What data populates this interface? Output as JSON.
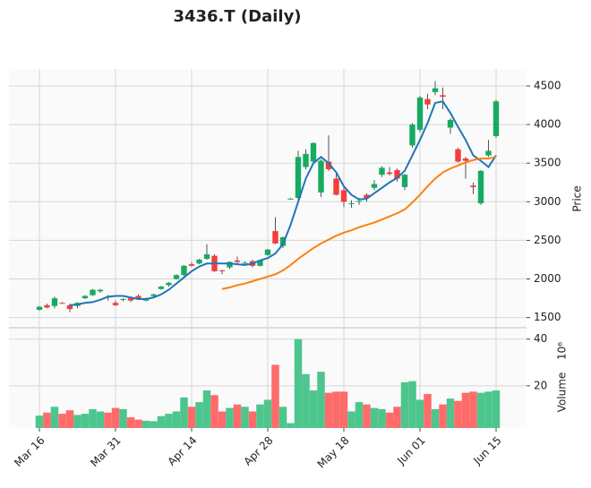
{
  "chart_data": {
    "type": "candlestick",
    "title": "3436.T (Daily)",
    "ylabel": "Price",
    "y2label": "Volume",
    "y2_offset_label": "10⁶",
    "categories": [
      "Mar 16",
      null,
      null,
      null,
      null,
      null,
      null,
      null,
      null,
      null,
      "Mar 31",
      null,
      null,
      null,
      null,
      null,
      null,
      null,
      null,
      null,
      "Apr 14",
      null,
      null,
      null,
      null,
      null,
      null,
      null,
      null,
      null,
      "Apr 28",
      null,
      null,
      null,
      null,
      null,
      null,
      null,
      null,
      null,
      "May 18",
      null,
      null,
      null,
      null,
      null,
      null,
      null,
      null,
      null,
      "Jun 01",
      null,
      null,
      null,
      null,
      null,
      null,
      null,
      null,
      null,
      "Jun 15"
    ],
    "open": [
      1600,
      1660,
      1650,
      1690,
      1660,
      1650,
      1750,
      1790,
      1840,
      1770,
      1690,
      1730,
      1750,
      1780,
      1720,
      1780,
      1870,
      1920,
      2000,
      2050,
      2190,
      2200,
      2260,
      2300,
      2110,
      2150,
      2240,
      2200,
      2230,
      2170,
      2310,
      2620,
      2430,
      3040,
      3050,
      3450,
      3520,
      3120,
      3520,
      3300,
      3150,
      2970,
      3000,
      3090,
      3180,
      3350,
      3380,
      3410,
      3190,
      3730,
      3930,
      4330,
      4420,
      4380,
      3960,
      3680,
      3560,
      3210,
      2980,
      3600,
      3850
    ],
    "high": [
      1650,
      1680,
      1770,
      1700,
      1680,
      1700,
      1790,
      1870,
      1870,
      1790,
      1720,
      1750,
      1770,
      1800,
      1760,
      1810,
      1910,
      1960,
      2060,
      2180,
      2220,
      2260,
      2450,
      2320,
      2120,
      2230,
      2290,
      2230,
      2250,
      2250,
      2390,
      2800,
      2550,
      3050,
      3660,
      3680,
      3770,
      3550,
      3860,
      3360,
      3200,
      3020,
      3050,
      3110,
      3280,
      3460,
      3450,
      3430,
      3360,
      4020,
      4370,
      4400,
      4560,
      4480,
      4080,
      3700,
      3580,
      3250,
      3410,
      3800,
      4320
    ],
    "low": [
      1590,
      1620,
      1620,
      1680,
      1570,
      1620,
      1740,
      1780,
      1820,
      1720,
      1650,
      1710,
      1700,
      1740,
      1710,
      1770,
      1860,
      1900,
      1990,
      2040,
      2160,
      2190,
      2250,
      2090,
      2060,
      2130,
      2200,
      2180,
      2150,
      2160,
      2300,
      2450,
      2400,
      3030,
      2990,
      3420,
      3500,
      3060,
      3400,
      3080,
      2930,
      2920,
      2960,
      3000,
      3150,
      3320,
      3340,
      3260,
      3150,
      3700,
      3900,
      4200,
      4380,
      4200,
      3880,
      3510,
      3300,
      3100,
      2960,
      3580,
      3830
    ],
    "close": [
      1640,
      1630,
      1750,
      1685,
      1610,
      1690,
      1780,
      1860,
      1860,
      1760,
      1660,
      1740,
      1720,
      1750,
      1740,
      1800,
      1900,
      1950,
      2050,
      2170,
      2170,
      2250,
      2320,
      2100,
      2100,
      2220,
      2220,
      2210,
      2170,
      2240,
      2380,
      2460,
      2540,
      3040,
      3580,
      3620,
      3760,
      3530,
      3420,
      3090,
      3000,
      2980,
      3010,
      3050,
      3230,
      3440,
      3360,
      3300,
      3350,
      4000,
      4350,
      4260,
      4470,
      4360,
      4060,
      3520,
      3530,
      3190,
      3400,
      3660,
      4300
    ],
    "volume": [
      7.2,
      8.5,
      11,
      8,
      9.5,
      7.5,
      8,
      10,
      9,
      8.5,
      10.5,
      10,
      6.5,
      5.5,
      5,
      4.8,
      7,
      8,
      9,
      15,
      11,
      13,
      18,
      16,
      9,
      10.5,
      12,
      11,
      9,
      12,
      14,
      29,
      11,
      4,
      40,
      25,
      18,
      26,
      17,
      17.5,
      17.5,
      9,
      13,
      12,
      10.5,
      10,
      8.5,
      11,
      21.5,
      22,
      14,
      16.5,
      10,
      12,
      14.5,
      13.5,
      17,
      17.5,
      17,
      17.5,
      18
    ],
    "mav": [
      {
        "color": "#1f77b4",
        "values": [
          null,
          null,
          null,
          null,
          1660,
          1670,
          1690,
          1700,
          1730,
          1770,
          1780,
          1780,
          1760,
          1740,
          1740,
          1760,
          1800,
          1860,
          1940,
          2020,
          2100,
          2160,
          2200,
          2200,
          2200,
          2200,
          2190,
          2180,
          2200,
          2240,
          2270,
          2330,
          2450,
          2700,
          3000,
          3300,
          3500,
          3580,
          3500,
          3380,
          3200,
          3090,
          3030,
          3040,
          3110,
          3180,
          3250,
          3310,
          3400,
          3600,
          3800,
          4020,
          4280,
          4300,
          4150,
          3970,
          3800,
          3600,
          3530,
          3450,
          3600
        ]
      },
      {
        "color": "#ff7f0e",
        "values": [
          null,
          null,
          null,
          null,
          null,
          null,
          null,
          null,
          null,
          null,
          null,
          null,
          null,
          null,
          null,
          null,
          null,
          null,
          null,
          null,
          null,
          null,
          null,
          null,
          1870,
          1890,
          1920,
          1940,
          1970,
          2000,
          2030,
          2060,
          2110,
          2180,
          2260,
          2330,
          2400,
          2460,
          2510,
          2560,
          2600,
          2630,
          2670,
          2700,
          2730,
          2770,
          2810,
          2850,
          2900,
          2990,
          3090,
          3200,
          3300,
          3380,
          3430,
          3470,
          3510,
          3540,
          3560,
          3560,
          3580
        ]
      }
    ],
    "up_color": "#17ab62",
    "down_color": "#f43d3d",
    "volume_up_color": "#4cc68d",
    "volume_down_color": "#ff6b6b",
    "ylim": [
      1380,
      4720
    ],
    "yticks": [
      1500,
      2000,
      2500,
      3000,
      3500,
      4000,
      4500
    ],
    "y2lim": [
      1.9,
      44.5
    ],
    "y2ticks": [
      20,
      40
    ],
    "grid": true
  }
}
